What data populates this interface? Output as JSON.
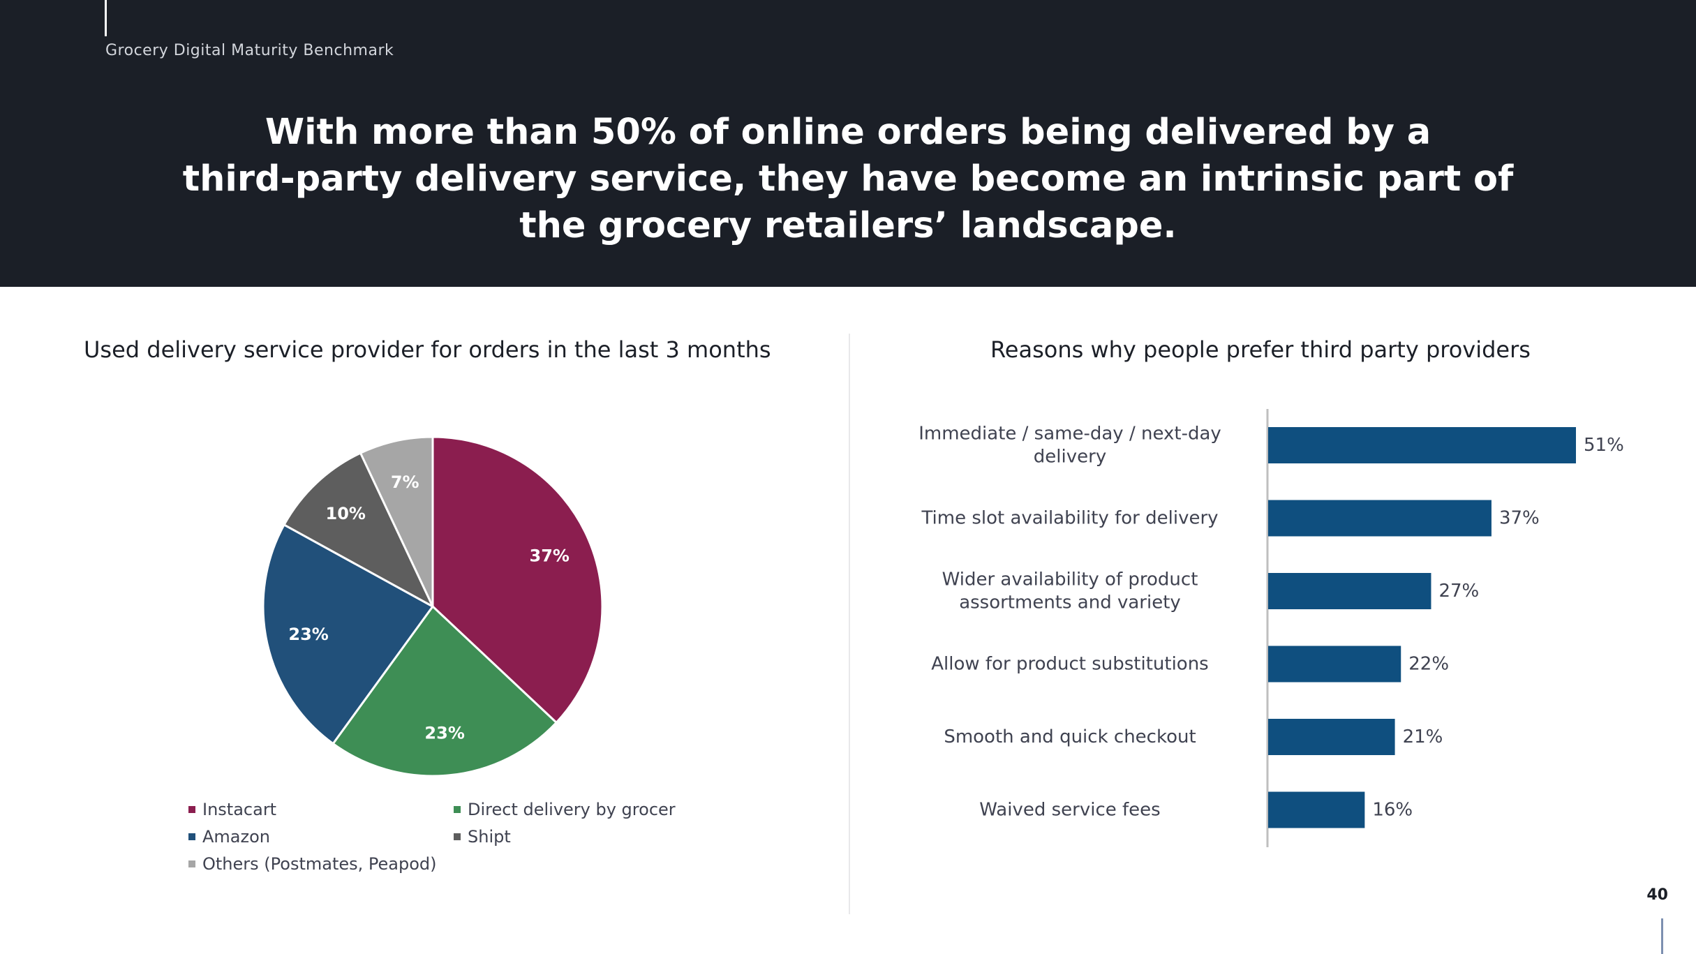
{
  "header": {
    "brand": "Grocery Digital Maturity Benchmark",
    "headline_lines": [
      "With more than 50% of online orders being delivered by a",
      "third-party delivery service, they have become an intrinsic part of",
      "the grocery retailers’ landscape."
    ]
  },
  "page_number": "40",
  "chart_data": [
    {
      "type": "pie",
      "title": "Used delivery service provider for orders in the last 3 months",
      "slices": [
        {
          "label": "Instacart",
          "value": 37,
          "display": "37%",
          "color": "#8b1e4f"
        },
        {
          "label": "Direct delivery by grocer",
          "value": 23,
          "display": "23%",
          "color": "#3e8e55"
        },
        {
          "label": "Amazon",
          "value": 23,
          "display": "23%",
          "color": "#21507a"
        },
        {
          "label": "Shipt",
          "value": 10,
          "display": "10%",
          "color": "#5e5e5e"
        },
        {
          "label": "Others (Postmates, Peapod)",
          "value": 7,
          "display": "7%",
          "color": "#a6a6a6"
        }
      ],
      "legend_order": [
        "Instacart",
        "Direct delivery by grocer",
        "Amazon",
        "Shipt",
        "Others (Postmates, Peapod)"
      ],
      "legend_position": "bottom"
    },
    {
      "type": "bar",
      "orientation": "horizontal",
      "title": "Reasons why people prefer third party providers",
      "categories": [
        [
          "Immediate / same-day / next-day",
          "delivery"
        ],
        [
          "Time slot availability for delivery"
        ],
        [
          "Wider availability of product",
          "assortments and variety"
        ],
        [
          "Allow for product substitutions"
        ],
        [
          "Smooth and quick checkout"
        ],
        [
          "Waived service fees"
        ]
      ],
      "values": [
        51,
        37,
        27,
        22,
        21,
        16
      ],
      "labels": [
        "51%",
        "37%",
        "27%",
        "22%",
        "21%",
        "16%"
      ],
      "xlim": [
        0,
        51
      ],
      "bar_color": "#0f4f7f",
      "grid": false
    }
  ]
}
